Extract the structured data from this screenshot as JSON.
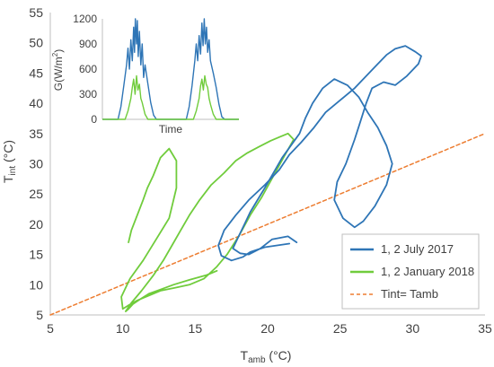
{
  "chart_data": [
    {
      "type": "line",
      "xlabel_main": "T",
      "xlabel_sub": "amb",
      "xlabel_unit": " (°C)",
      "ylabel_main": "T",
      "ylabel_sub": "int",
      "ylabel_unit": " (°C)",
      "xlim": [
        5,
        35
      ],
      "ylim": [
        5,
        55
      ],
      "xticks": [
        5,
        10,
        15,
        20,
        25,
        30,
        35
      ],
      "yticks": [
        5,
        10,
        15,
        20,
        25,
        30,
        35,
        40,
        45,
        50,
        55
      ],
      "grid": false,
      "legend_position": "bottom-right",
      "series": [
        {
          "name": "1, 2 July 2017",
          "color": "#2E75B6",
          "style": "solid",
          "x": [
            21.5,
            19.8,
            18.8,
            18.3,
            17.5,
            16.8,
            16.6,
            17.0,
            17.8,
            18.7,
            19.8,
            20.8,
            21.5,
            22.3,
            23.2,
            24.0,
            25.0,
            26.0,
            26.8,
            27.6,
            28.2,
            28.8,
            29.5,
            30.2,
            30.6,
            30.4,
            29.6,
            28.8,
            28.0,
            27.2,
            26.8,
            26.4,
            26.0,
            25.4,
            24.8,
            24.6,
            25.2,
            26.0,
            26.6,
            27.4,
            28.2,
            28.6,
            28.2,
            27.6,
            26.9,
            26.3,
            25.5,
            24.6,
            23.8,
            23.1,
            22.6,
            22.2,
            21.6,
            21.0,
            20.4,
            19.8,
            19.3,
            18.8,
            18.4,
            18.0,
            17.6,
            18.1,
            18.7,
            19.5,
            20.3,
            21.4,
            22.0
          ],
          "y": [
            16.8,
            16.2,
            15.4,
            14.6,
            14.0,
            14.8,
            16.5,
            19.0,
            21.5,
            24.0,
            26.5,
            29.0,
            31.5,
            33.5,
            36.0,
            38.5,
            40.5,
            42.5,
            44.5,
            46.5,
            48.0,
            49.0,
            49.5,
            48.5,
            47.8,
            46.5,
            44.5,
            43.0,
            43.5,
            42.5,
            40.0,
            37.0,
            34.0,
            30.0,
            27.0,
            24.0,
            21.0,
            19.5,
            20.5,
            23.0,
            26.5,
            30.0,
            33.0,
            36.0,
            38.5,
            41.0,
            43.0,
            44.0,
            42.5,
            40.0,
            37.5,
            35.0,
            33.0,
            31.0,
            28.5,
            26.0,
            24.0,
            22.0,
            20.0,
            18.0,
            16.0,
            15.2,
            15.0,
            16.0,
            17.5,
            18.0,
            17.0
          ]
        },
        {
          "name": "1, 2 January 2018",
          "color": "#70CC3C",
          "style": "solid",
          "x": [
            16.5,
            15.8,
            14.6,
            13.5,
            12.6,
            11.8,
            11.2,
            10.7,
            10.4,
            10.2,
            10.6,
            11.3,
            12.1,
            12.8,
            13.4,
            14.0,
            14.6,
            15.3,
            16.1,
            17.0,
            17.8,
            18.6,
            19.4,
            20.2,
            20.8,
            21.4,
            21.8,
            21.2,
            20.4,
            19.6,
            18.8,
            18.0,
            17.2,
            16.5,
            15.6,
            14.6,
            13.6,
            12.6,
            11.8,
            11.0,
            10.4,
            10.0,
            9.9,
            10.5,
            11.4,
            12.3,
            13.2,
            13.7,
            13.7,
            13.2,
            12.6,
            12.1,
            11.7,
            11.4,
            11.0,
            10.6,
            10.4
          ],
          "y": [
            12.3,
            11.6,
            10.8,
            10.0,
            9.2,
            8.5,
            7.6,
            6.8,
            6.0,
            5.6,
            7.0,
            9.0,
            11.5,
            14.0,
            16.5,
            19.0,
            21.5,
            24.0,
            26.5,
            28.5,
            30.5,
            31.8,
            32.8,
            33.8,
            34.4,
            35.0,
            34.0,
            31.5,
            28.0,
            24.5,
            21.5,
            18.0,
            15.0,
            13.0,
            11.0,
            10.0,
            9.5,
            9.0,
            8.2,
            7.4,
            6.6,
            6.0,
            8.0,
            11.0,
            14.0,
            17.5,
            21.0,
            26.0,
            30.5,
            32.5,
            31.0,
            28.0,
            26.0,
            24.0,
            21.5,
            19.0,
            17.0
          ]
        },
        {
          "name": "Tint= Tamb",
          "color": "#ED7D31",
          "style": "dashed",
          "x": [
            5,
            35
          ],
          "y": [
            5,
            35
          ]
        }
      ]
    },
    {
      "type": "line",
      "xlabel": "Time",
      "ylabel_main": "G(W/m",
      "ylabel_sup": "2",
      "ylabel_close": ")",
      "ylim": [
        0,
        1200
      ],
      "yticks": [
        0,
        300,
        600,
        900,
        1200
      ],
      "xlim": [
        0,
        48
      ],
      "grid": false,
      "series": [
        {
          "name": "July",
          "color": "#2E75B6",
          "x": [
            0,
            5.5,
            6.5,
            7.5,
            8.5,
            9.0,
            9.5,
            10.0,
            10.5,
            11.0,
            11.3,
            11.6,
            12.0,
            12.3,
            12.6,
            13.0,
            13.5,
            14.0,
            14.5,
            15.0,
            16.0,
            17.0,
            18.0,
            19.0,
            29.5,
            30.5,
            31.5,
            32.5,
            33.0,
            33.5,
            34.0,
            34.5,
            35.0,
            35.4,
            35.8,
            36.2,
            36.6,
            37.0,
            37.5,
            38.0,
            39.0,
            40.0,
            41.0,
            42.0,
            43.0,
            48
          ],
          "y": [
            0,
            0,
            150,
            400,
            650,
            850,
            600,
            950,
            700,
            1100,
            800,
            1200,
            900,
            1180,
            750,
            1050,
            650,
            900,
            500,
            650,
            420,
            200,
            50,
            0,
            0,
            150,
            400,
            700,
            900,
            700,
            1000,
            780,
            1150,
            880,
            1200,
            900,
            1100,
            800,
            950,
            700,
            550,
            380,
            180,
            30,
            0,
            0
          ]
        },
        {
          "name": "January",
          "color": "#70CC3C",
          "x": [
            0,
            8.0,
            9.0,
            10.0,
            10.5,
            11.0,
            11.5,
            12.0,
            12.5,
            13.0,
            13.5,
            14.0,
            15.0,
            16.0,
            32.0,
            33.0,
            34.0,
            34.5,
            35.0,
            35.5,
            36.0,
            36.5,
            37.0,
            37.5,
            38.0,
            39.0,
            40.0,
            48
          ],
          "y": [
            0,
            0,
            100,
            250,
            380,
            480,
            300,
            520,
            350,
            420,
            250,
            200,
            60,
            0,
            0,
            100,
            250,
            400,
            480,
            350,
            520,
            420,
            380,
            250,
            180,
            60,
            0,
            0
          ]
        }
      ]
    }
  ]
}
